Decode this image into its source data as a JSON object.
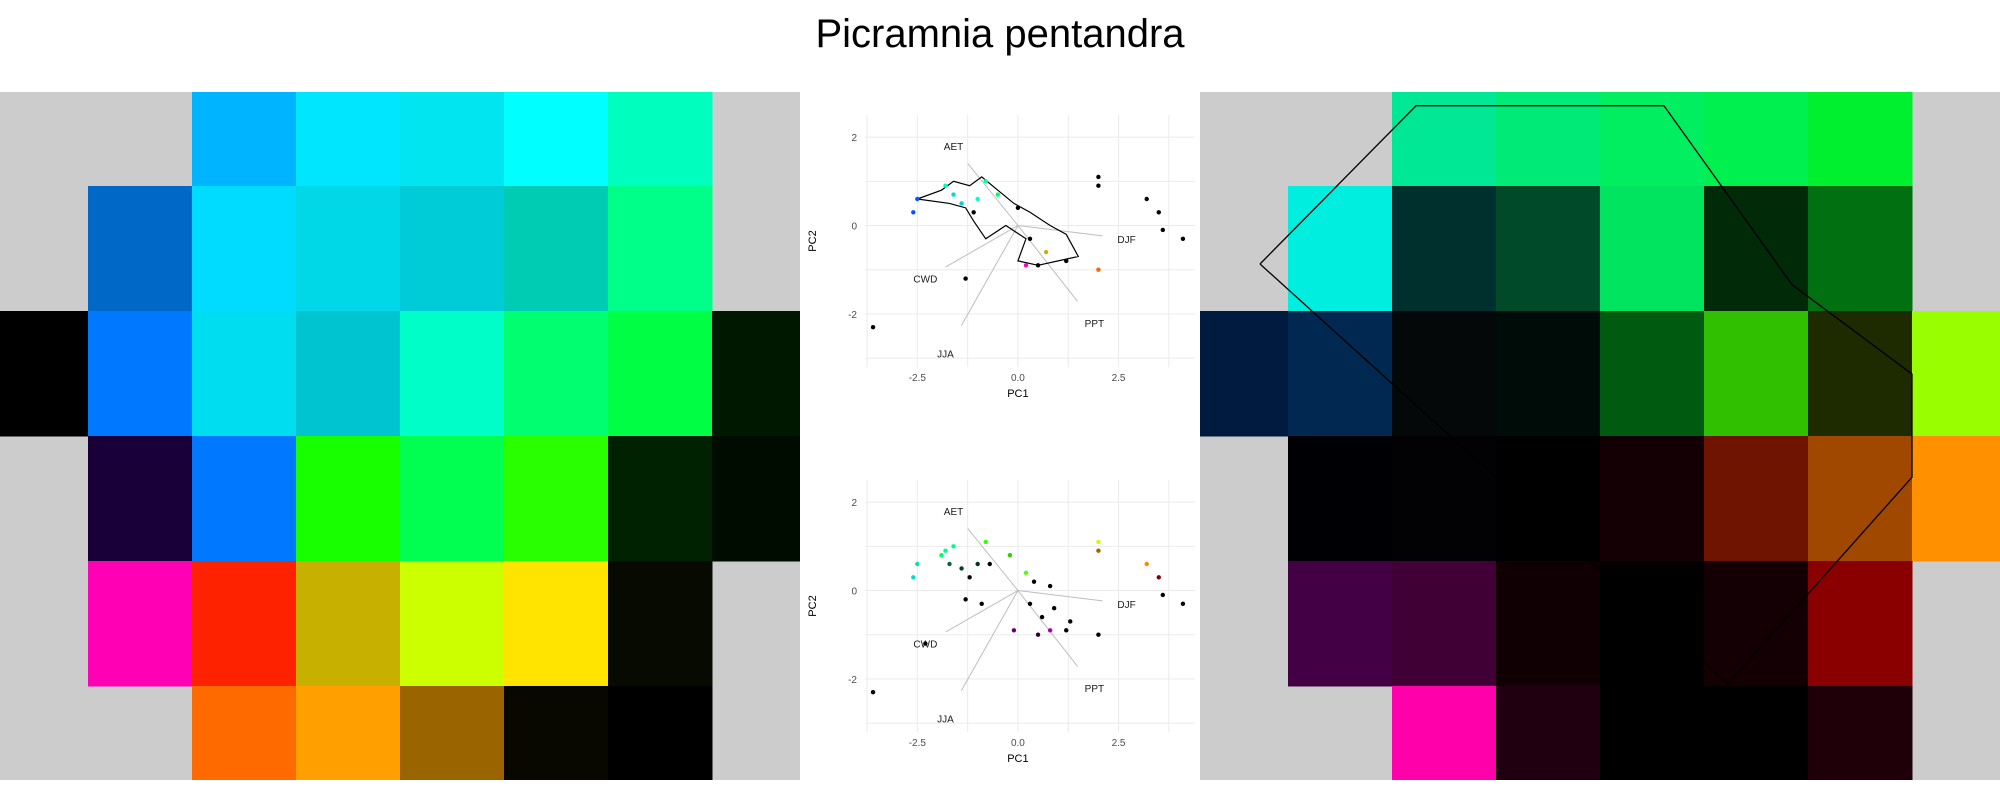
{
  "title": "Picramnia pentandra",
  "chart_data": [
    {
      "type": "heatmap",
      "panel": "left",
      "nodata_color": "#cccccc",
      "rows": [
        [
          null,
          null,
          "#00b4ff",
          "#00e6ff",
          "#00e5f0",
          "#00ffff",
          "#00ffbe",
          null
        ],
        [
          null,
          "#0068c6",
          "#00dcff",
          "#00d8e8",
          "#00ccd8",
          "#00ccb4",
          "#00ff88",
          null
        ],
        [
          "#000000",
          "#0078ff",
          "#00dcf0",
          "#00c4d0",
          "#00ffc8",
          "#00ff70",
          "#00ff44",
          "#001800"
        ],
        [
          null,
          "#1a0038",
          "#0078ff",
          "#18ff00",
          "#00ff50",
          "#2aff00",
          "#002200",
          "#000c00"
        ],
        [
          null,
          "#ff00b4",
          "#ff2200",
          "#c8b000",
          "#ccff00",
          "#ffe400",
          "#060a00",
          null
        ],
        [
          null,
          null,
          "#ff6a00",
          "#ffa000",
          "#9a6400",
          "#080800",
          "#000000",
          null
        ]
      ]
    },
    {
      "type": "scatter",
      "panel": "biplot-top",
      "xlabel": "PC1",
      "ylabel": "PC2",
      "xlim": [
        -3.8,
        4.4
      ],
      "ylim": [
        -3.2,
        2.5
      ],
      "xticks": [
        "-2.5",
        "0.0",
        "2.5"
      ],
      "yticks": [
        "2",
        "0",
        "-2"
      ],
      "origin": [
        0,
        0
      ],
      "vectors": [
        {
          "label": "AET",
          "x": -1.6,
          "y": 1.8
        },
        {
          "label": "CWD",
          "x": -2.3,
          "y": -1.2
        },
        {
          "label": "JJA",
          "x": -1.8,
          "y": -2.9
        },
        {
          "label": "DJF",
          "x": 2.7,
          "y": -0.3
        },
        {
          "label": "PPT",
          "x": 1.9,
          "y": -2.2
        }
      ],
      "points": [
        {
          "x": -2.5,
          "y": 0.6,
          "color": "#0055ff"
        },
        {
          "x": -2.6,
          "y": 0.3,
          "color": "#0055ff"
        },
        {
          "x": -1.8,
          "y": 0.9,
          "color": "#00ffbb"
        },
        {
          "x": -1.6,
          "y": 0.7,
          "color": "#00ddcc"
        },
        {
          "x": -1.4,
          "y": 0.5,
          "color": "#00ccdd"
        },
        {
          "x": -1.0,
          "y": 0.6,
          "color": "#00ffcc"
        },
        {
          "x": -0.8,
          "y": 1.0,
          "color": "#00ffaa"
        },
        {
          "x": -1.1,
          "y": 0.3,
          "color": "#000000"
        },
        {
          "x": -0.5,
          "y": 0.7,
          "color": "#00ff66"
        },
        {
          "x": 0.0,
          "y": 0.4,
          "color": "#000000"
        },
        {
          "x": -1.3,
          "y": -1.2,
          "color": "#000000"
        },
        {
          "x": 0.3,
          "y": -0.3,
          "color": "#000000"
        },
        {
          "x": 0.7,
          "y": -0.6,
          "color": "#c8b000"
        },
        {
          "x": 1.2,
          "y": -0.8,
          "color": "#000000"
        },
        {
          "x": 0.2,
          "y": -0.9,
          "color": "#ff00cc"
        },
        {
          "x": 0.5,
          "y": -0.9,
          "color": "#000000"
        },
        {
          "x": 2.0,
          "y": -1.0,
          "color": "#ff6600"
        },
        {
          "x": 2.0,
          "y": 1.1,
          "color": "#000000"
        },
        {
          "x": 2.0,
          "y": 0.9,
          "color": "#000000"
        },
        {
          "x": 3.2,
          "y": 0.6,
          "color": "#000000"
        },
        {
          "x": 3.5,
          "y": 0.3,
          "color": "#000000"
        },
        {
          "x": 3.6,
          "y": -0.1,
          "color": "#000000"
        },
        {
          "x": 4.1,
          "y": -0.3,
          "color": "#000000"
        },
        {
          "x": -3.6,
          "y": -2.3,
          "color": "#000000"
        }
      ],
      "hull": [
        [
          -2.5,
          0.6
        ],
        [
          -1.9,
          0.8
        ],
        [
          -1.6,
          1.0
        ],
        [
          -1.2,
          0.9
        ],
        [
          -0.9,
          1.1
        ],
        [
          -0.5,
          0.8
        ],
        [
          -0.1,
          0.5
        ],
        [
          0.3,
          0.3
        ],
        [
          0.8,
          0.0
        ],
        [
          1.2,
          -0.2
        ],
        [
          1.5,
          -0.7
        ],
        [
          1.0,
          -0.8
        ],
        [
          0.5,
          -0.9
        ],
        [
          0.0,
          -0.8
        ],
        [
          0.2,
          -0.3
        ],
        [
          -0.3,
          0.0
        ],
        [
          -0.8,
          -0.3
        ],
        [
          -1.1,
          0.1
        ],
        [
          -1.3,
          0.4
        ],
        [
          -1.7,
          0.5
        ],
        [
          -2.5,
          0.6
        ]
      ]
    },
    {
      "type": "scatter",
      "panel": "biplot-bottom",
      "xlabel": "PC1",
      "ylabel": "PC2",
      "xlim": [
        -3.8,
        4.4
      ],
      "ylim": [
        -3.2,
        2.5
      ],
      "xticks": [
        "-2.5",
        "0.0",
        "2.5"
      ],
      "yticks": [
        "2",
        "0",
        "-2"
      ],
      "origin": [
        0,
        0
      ],
      "vectors": [
        {
          "label": "AET",
          "x": -1.6,
          "y": 1.8
        },
        {
          "label": "CWD",
          "x": -2.3,
          "y": -1.2
        },
        {
          "label": "JJA",
          "x": -1.8,
          "y": -2.9
        },
        {
          "label": "DJF",
          "x": 2.7,
          "y": -0.3
        },
        {
          "label": "PPT",
          "x": 1.9,
          "y": -2.2
        }
      ],
      "points": [
        {
          "x": -2.5,
          "y": 0.6,
          "color": "#00e0c0"
        },
        {
          "x": -2.6,
          "y": 0.3,
          "color": "#00e0c0"
        },
        {
          "x": -1.8,
          "y": 0.9,
          "color": "#00ff88"
        },
        {
          "x": -1.6,
          "y": 1.0,
          "color": "#00ff88"
        },
        {
          "x": -1.9,
          "y": 0.8,
          "color": "#00ff66"
        },
        {
          "x": -1.7,
          "y": 0.6,
          "color": "#006644"
        },
        {
          "x": -1.4,
          "y": 0.5,
          "color": "#004422"
        },
        {
          "x": -1.2,
          "y": 0.3,
          "color": "#000000"
        },
        {
          "x": -1.0,
          "y": 0.6,
          "color": "#003322"
        },
        {
          "x": -0.8,
          "y": 1.1,
          "color": "#33ff00"
        },
        {
          "x": -0.7,
          "y": 0.6,
          "color": "#000000"
        },
        {
          "x": -0.2,
          "y": 0.8,
          "color": "#33cc00"
        },
        {
          "x": 0.2,
          "y": 0.4,
          "color": "#55ff00"
        },
        {
          "x": 0.4,
          "y": 0.2,
          "color": "#000000"
        },
        {
          "x": 0.8,
          "y": 0.1,
          "color": "#000000"
        },
        {
          "x": -1.3,
          "y": -0.2,
          "color": "#000000"
        },
        {
          "x": -0.9,
          "y": -0.3,
          "color": "#000000"
        },
        {
          "x": 0.3,
          "y": -0.3,
          "color": "#000000"
        },
        {
          "x": 0.6,
          "y": -0.6,
          "color": "#000000"
        },
        {
          "x": 0.9,
          "y": -0.4,
          "color": "#000000"
        },
        {
          "x": 1.3,
          "y": -0.7,
          "color": "#000000"
        },
        {
          "x": 1.2,
          "y": -0.9,
          "color": "#000000"
        },
        {
          "x": -0.1,
          "y": -0.9,
          "color": "#660066"
        },
        {
          "x": 0.5,
          "y": -1.0,
          "color": "#330033"
        },
        {
          "x": 0.8,
          "y": -0.9,
          "color": "#aa00aa"
        },
        {
          "x": 2.0,
          "y": -1.0,
          "color": "#000000"
        },
        {
          "x": 2.0,
          "y": 1.1,
          "color": "#ccff00"
        },
        {
          "x": 2.0,
          "y": 0.9,
          "color": "#996600"
        },
        {
          "x": 3.2,
          "y": 0.6,
          "color": "#ff8800"
        },
        {
          "x": 3.5,
          "y": 0.3,
          "color": "#880000"
        },
        {
          "x": 3.6,
          "y": -0.1,
          "color": "#000000"
        },
        {
          "x": 4.1,
          "y": -0.3,
          "color": "#000000"
        },
        {
          "x": -3.6,
          "y": -2.3,
          "color": "#000000"
        },
        {
          "x": -2.3,
          "y": -1.2,
          "color": "#000000"
        }
      ]
    },
    {
      "type": "heatmap",
      "panel": "right",
      "nodata_color": "#cccccc",
      "rows": [
        [
          null,
          null,
          "#00e896",
          "#00ea78",
          "#00ee60",
          "#00f050",
          "#00f030",
          null
        ],
        [
          null,
          "#00eee0",
          "#00302e",
          "#004a2a",
          "#00e460",
          "#002a08",
          "#007010",
          null
        ],
        [
          "#001a40",
          "#002850",
          "#040808",
          "#000c08",
          "#005a10",
          "#30c000",
          "#1e2a00",
          "#99ff00"
        ],
        [
          null,
          "#000004",
          "#020204",
          "#000000",
          "#140004",
          "#6e1400",
          "#a04800",
          "#ff9000"
        ],
        [
          null,
          "#440044",
          "#400036",
          "#100004",
          "#000000",
          "#140004",
          "#8a0000",
          null
        ],
        [
          null,
          null,
          "#ff00aa",
          "#200010",
          "#000000",
          "#000000",
          "#200008",
          null
        ]
      ],
      "outline": [
        [
          0.075,
          0.25
        ],
        [
          0.27,
          0.02
        ],
        [
          0.58,
          0.02
        ],
        [
          0.74,
          0.28
        ],
        [
          0.89,
          0.41
        ],
        [
          0.89,
          0.56
        ],
        [
          0.66,
          0.86
        ],
        [
          0.36,
          0.55
        ],
        [
          0.075,
          0.25
        ]
      ]
    }
  ]
}
